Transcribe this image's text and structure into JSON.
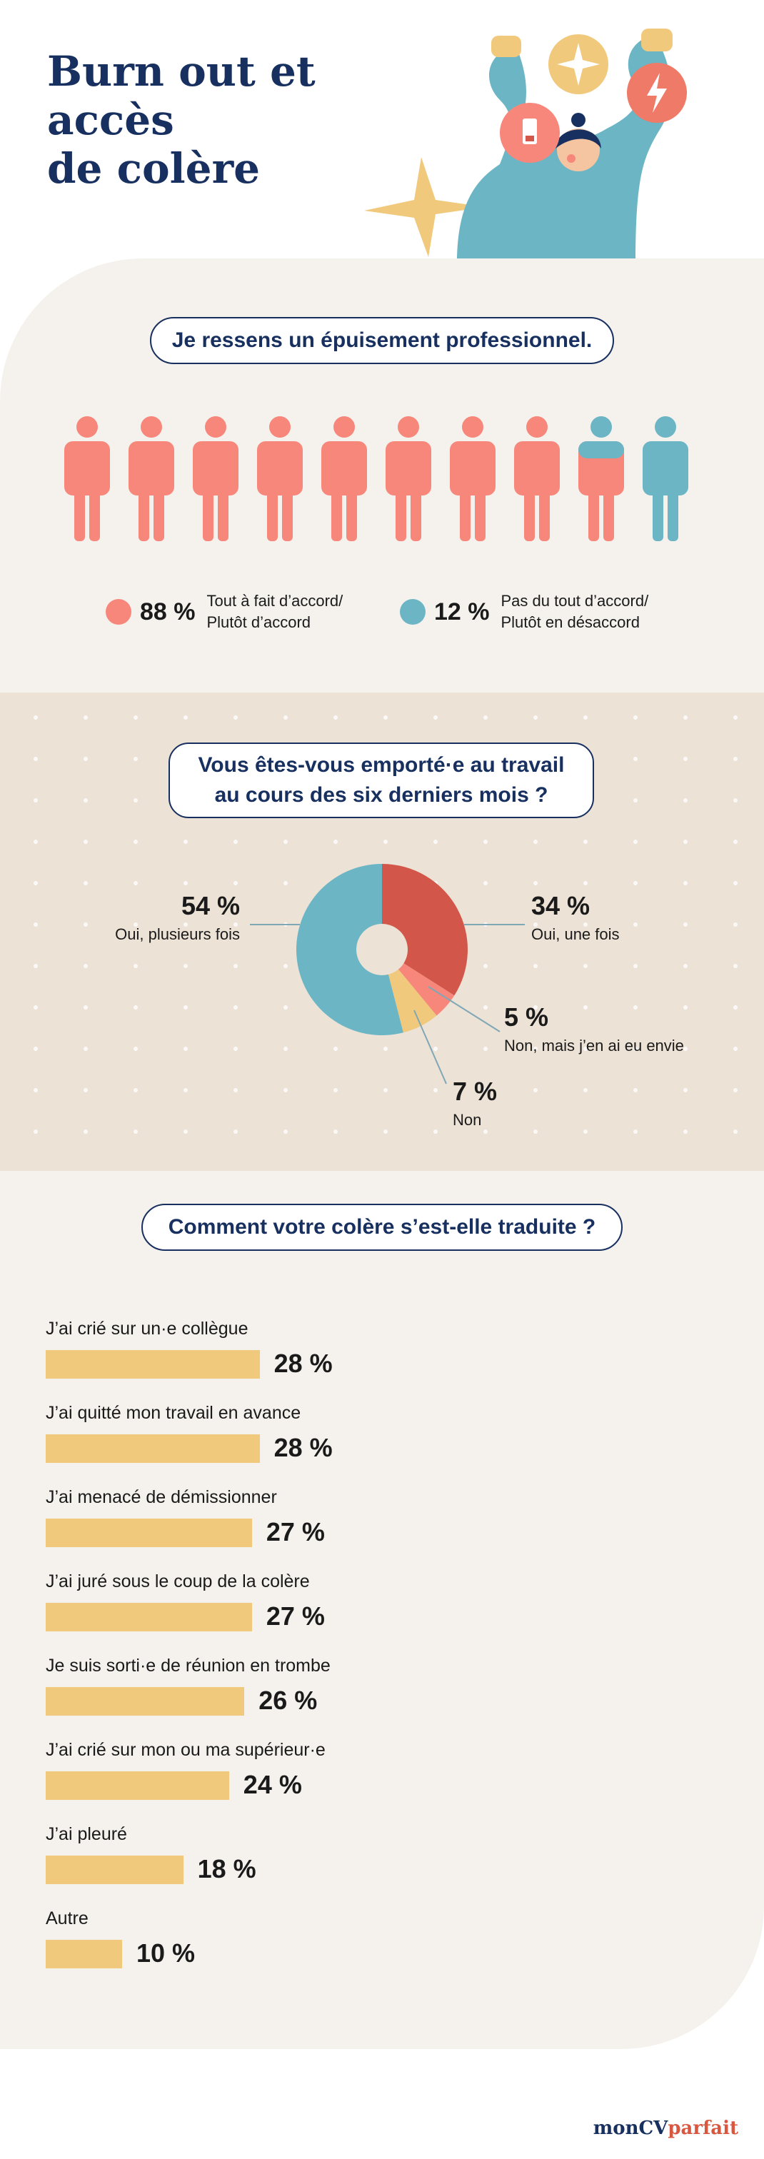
{
  "header": {
    "title_line1": "Burn out et accès",
    "title_line2": "de colère"
  },
  "colors": {
    "navy": "#17305f",
    "coral": "#f7877a",
    "teal": "#6cb5c5",
    "red": "#d2574a",
    "yellow": "#f1c97c",
    "cream": "#f5f2ee",
    "beige": "#ece2d6"
  },
  "section1": {
    "question": "Je ressens un épuisement professionnel.",
    "icon": "person-icon",
    "people_total": 10,
    "people_agree": 8.8,
    "legend": [
      {
        "pct": "88 %",
        "label_line1": "Tout à fait d’accord/",
        "label_line2": "Plutôt d’accord",
        "color": "#f7877a"
      },
      {
        "pct": "12 %",
        "label_line1": "Pas du tout d’accord/",
        "label_line2": "Plutôt en désaccord",
        "color": "#6cb5c5"
      }
    ]
  },
  "section2": {
    "question_line1": "Vous êtes-vous emporté·e au travail",
    "question_line2": "au cours des six derniers mois ?"
  },
  "section3": {
    "question": "Comment votre colère s’est-elle traduite ?"
  },
  "chart_data": [
    {
      "type": "pie",
      "slices": [
        {
          "label": "Oui, une fois",
          "value": 34,
          "display": "34 %",
          "color": "#d2574a"
        },
        {
          "label": "Non, mais j’en ai eu envie",
          "value": 5,
          "display": "5 %",
          "color": "#f7877a"
        },
        {
          "label": "Non",
          "value": 7,
          "display": "7 %",
          "color": "#f1c97c"
        },
        {
          "label": "Oui, plusieurs fois",
          "value": 54,
          "display": "54 %",
          "color": "#6cb5c5"
        }
      ]
    },
    {
      "type": "bar",
      "orientation": "horizontal",
      "categories": [
        "J’ai crié sur un·e collègue",
        "J’ai quitté mon travail en avance",
        "J’ai menacé de démissionner",
        "J’ai juré sous le coup de la colère",
        "Je suis sorti·e de réunion en trombe",
        "J’ai crié sur mon ou ma supérieur·e",
        "J’ai pleuré",
        "Autre"
      ],
      "values": [
        28,
        28,
        27,
        27,
        26,
        24,
        18,
        10
      ],
      "display": [
        "28 %",
        "28 %",
        "27 %",
        "27 %",
        "26 %",
        "24 %",
        "18 %",
        "10 %"
      ]
    }
  ],
  "brand": {
    "part1": "monCV",
    "part2": "parfait"
  }
}
